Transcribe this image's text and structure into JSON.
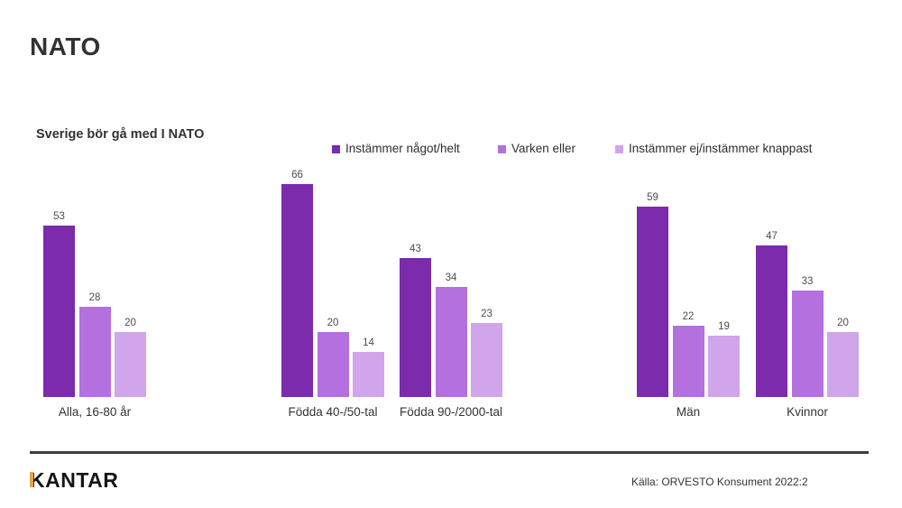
{
  "header": {
    "title": "NATO"
  },
  "chart_data": {
    "type": "bar",
    "title": "Sverige bör gå med I NATO",
    "categories": [
      "Alla, 16-80 år",
      "Födda 40-/50-tal",
      "Födda 90-/2000-tal",
      "Män",
      "Kvinnor"
    ],
    "series": [
      {
        "name": "Instämmer något/helt",
        "color": "#7C2BAC",
        "values": [
          53,
          66,
          43,
          59,
          47
        ]
      },
      {
        "name": "Varken eller",
        "color": "#B470DE",
        "values": [
          28,
          20,
          34,
          22,
          33
        ]
      },
      {
        "name": "Instämmer ej/instämmer knappast",
        "color": "#D0A5EA",
        "values": [
          20,
          14,
          23,
          19,
          20
        ]
      }
    ],
    "ylim": [
      0,
      70
    ],
    "value_labels_shown": true,
    "legend_position": "top",
    "grid": false,
    "axis_lines": false,
    "text_color": "#333333",
    "value_label_color": "#4d4d4d"
  },
  "footer": {
    "logo_text": "KANTAR",
    "logo_accent_color": "#E8A33D",
    "source": "Källa: ORVESTO Konsument 2022:2"
  }
}
